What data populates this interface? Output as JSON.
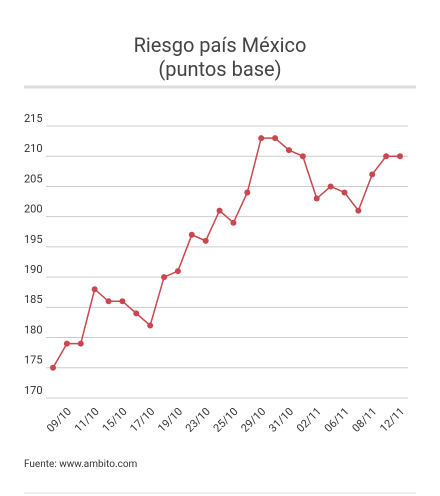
{
  "chart_data": {
    "type": "line",
    "title": "Riesgo país México",
    "subtitle": "(puntos base)",
    "source": "Fuente: www.ambito.com",
    "categories": [
      null,
      "09/10",
      null,
      "11/10",
      null,
      "15/10",
      null,
      "17/10",
      null,
      "19/10",
      null,
      "23/10",
      null,
      "25/10",
      null,
      "29/10",
      null,
      "31/10",
      null,
      "02/11",
      null,
      "06/11",
      null,
      "08/11",
      null,
      "12/11"
    ],
    "series": [
      {
        "name": "Riesgo país",
        "color": "#c9474f",
        "values": [
          175,
          179,
          179,
          188,
          186,
          186,
          184,
          182,
          190,
          191,
          197,
          196,
          201,
          199,
          204,
          213,
          213,
          211,
          210,
          203,
          205,
          204,
          201,
          207,
          210,
          210
        ]
      }
    ],
    "ylim": [
      170,
      215
    ],
    "yticks": [
      170,
      175,
      180,
      185,
      190,
      195,
      200,
      205,
      210,
      215
    ],
    "grid": true
  }
}
